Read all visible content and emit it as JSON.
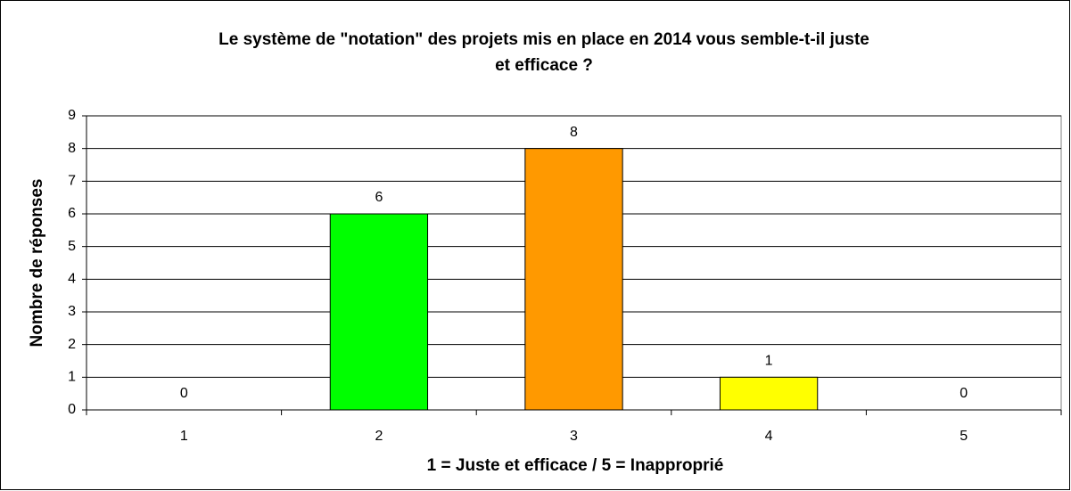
{
  "chart_data": {
    "type": "bar",
    "title": [
      "Le système de \"notation\" des projets mis en place en 2014 vous semble-t-il juste",
      "et efficace ?"
    ],
    "x_label": "1 = Juste et efficace / 5 = Inapproprié",
    "y_label": "Nombre de réponses",
    "categories": [
      "1",
      "2",
      "3",
      "4",
      "5"
    ],
    "values": [
      0,
      6,
      8,
      1,
      0
    ],
    "colors": [
      "#00ff00",
      "#00ff00",
      "#ff9900",
      "#ffff00",
      "#ffff00"
    ],
    "ylim": [
      0,
      9
    ],
    "yticks": [
      0,
      1,
      2,
      3,
      4,
      5,
      6,
      7,
      8,
      9
    ],
    "grid": true
  }
}
